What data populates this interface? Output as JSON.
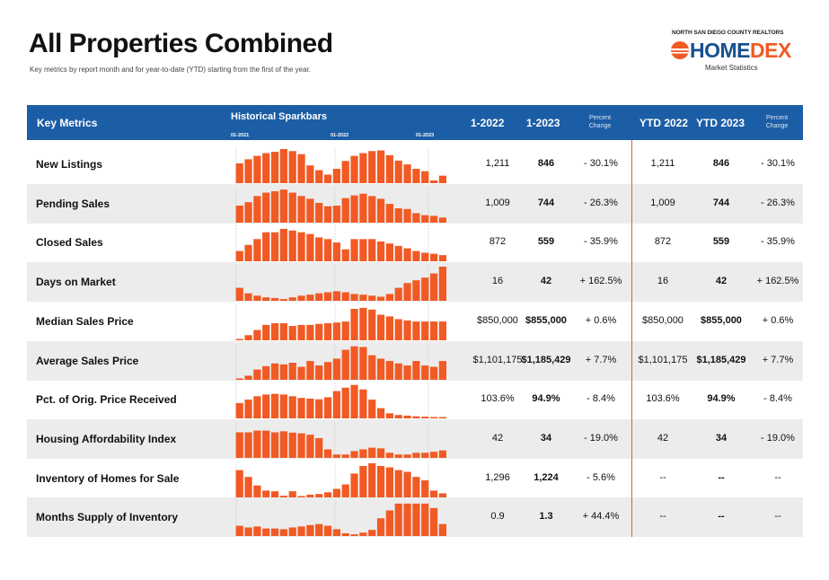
{
  "title": "All Properties Combined",
  "subtitle": "Key metrics by report month and for year-to-date (YTD) starting from the first of the year.",
  "logo": {
    "top_text": "NORTH SAN DIEGO COUNTY REALTORS",
    "brand_home": "HOME",
    "brand_dex": "DEX",
    "sub_text": "Market Statistics",
    "colors": {
      "blue": "#16508f",
      "orange": "#f15a24"
    }
  },
  "header": {
    "key_metrics": "Key Metrics",
    "sparkbars": "Historical Sparkbars",
    "tick_2021": "01-2021",
    "tick_2022": "01-2022",
    "tick_2023": "01-2023",
    "col_1_2022": "1-2022",
    "col_1_2023": "1-2023",
    "pct_1": "Percent",
    "pct_2": "Change",
    "ytd_2022": "YTD 2022",
    "ytd_2023": "YTD 2023",
    "ytd_pct_1": "Percent",
    "ytd_pct_2": "Change"
  },
  "colors": {
    "header_bg": "#1c5ea6",
    "bar": "#f15a24",
    "divider": "#e9573f",
    "row_shade": "#ececec"
  },
  "rows": [
    {
      "label": "New Listings",
      "v2022": "1,211",
      "v2023": "846",
      "pct": "- 30.1%",
      "ytd2022": "1,211",
      "ytd2023": "846",
      "ytdpct": "- 30.1%",
      "bars": [
        0.58,
        0.7,
        0.8,
        0.88,
        0.92,
        1.0,
        0.94,
        0.85,
        0.52,
        0.38,
        0.25,
        0.42,
        0.65,
        0.8,
        0.88,
        0.94,
        0.96,
        0.82,
        0.66,
        0.55,
        0.42,
        0.35,
        0.08,
        0.22
      ]
    },
    {
      "label": "Pending Sales",
      "v2022": "1,009",
      "v2023": "744",
      "pct": "- 26.3%",
      "ytd2022": "1,009",
      "ytd2023": "744",
      "ytdpct": "- 26.3%",
      "bars": [
        0.5,
        0.6,
        0.78,
        0.88,
        0.92,
        0.97,
        0.88,
        0.78,
        0.7,
        0.58,
        0.48,
        0.5,
        0.72,
        0.8,
        0.85,
        0.78,
        0.7,
        0.55,
        0.42,
        0.4,
        0.28,
        0.22,
        0.2,
        0.15
      ]
    },
    {
      "label": "Closed Sales",
      "v2022": "872",
      "v2023": "559",
      "pct": "- 35.9%",
      "ytd2022": "872",
      "ytd2023": "559",
      "ytdpct": "- 35.9%",
      "bars": [
        0.3,
        0.48,
        0.65,
        0.85,
        0.85,
        0.95,
        0.9,
        0.85,
        0.8,
        0.7,
        0.65,
        0.55,
        0.35,
        0.65,
        0.65,
        0.65,
        0.58,
        0.52,
        0.45,
        0.38,
        0.3,
        0.25,
        0.22,
        0.18
      ]
    },
    {
      "label": "Days on Market",
      "v2022": "16",
      "v2023": "42",
      "pct": "+ 162.5%",
      "ytd2022": "16",
      "ytd2023": "42",
      "ytdpct": "+ 162.5%",
      "bars": [
        0.38,
        0.22,
        0.15,
        0.1,
        0.08,
        0.05,
        0.1,
        0.15,
        0.18,
        0.22,
        0.25,
        0.28,
        0.25,
        0.2,
        0.18,
        0.15,
        0.12,
        0.2,
        0.38,
        0.52,
        0.6,
        0.68,
        0.8,
        1.0
      ]
    },
    {
      "label": "Median Sales Price",
      "v2022": "$850,000",
      "v2023": "$855,000",
      "pct": "+ 0.6%",
      "ytd2022": "$850,000",
      "ytd2023": "$855,000",
      "ytdpct": "+ 0.6%",
      "bars": [
        0.02,
        0.15,
        0.3,
        0.45,
        0.5,
        0.5,
        0.42,
        0.45,
        0.45,
        0.48,
        0.5,
        0.52,
        0.55,
        0.92,
        0.95,
        0.9,
        0.75,
        0.7,
        0.62,
        0.58,
        0.55,
        0.55,
        0.55,
        0.55
      ]
    },
    {
      "label": "Average Sales Price",
      "v2022": "$1,101,175",
      "v2023": "$1,185,429",
      "pct": "+ 7.7%",
      "ytd2022": "$1,101,175",
      "ytd2023": "$1,185,429",
      "ytdpct": "+ 7.7%",
      "bars": [
        0.02,
        0.12,
        0.3,
        0.4,
        0.48,
        0.45,
        0.5,
        0.38,
        0.55,
        0.42,
        0.52,
        0.62,
        0.88,
        0.98,
        0.96,
        0.72,
        0.62,
        0.55,
        0.48,
        0.42,
        0.55,
        0.42,
        0.38,
        0.55
      ]
    },
    {
      "label": "Pct. of Orig. Price Received",
      "v2022": "103.6%",
      "v2023": "94.9%",
      "pct": "- 8.4%",
      "ytd2022": "103.6%",
      "ytd2023": "94.9%",
      "ytdpct": "- 8.4%",
      "bars": [
        0.45,
        0.55,
        0.65,
        0.7,
        0.72,
        0.7,
        0.65,
        0.6,
        0.58,
        0.56,
        0.62,
        0.8,
        0.9,
        0.98,
        0.85,
        0.55,
        0.3,
        0.15,
        0.1,
        0.08,
        0.06,
        0.05,
        0.04,
        0.04
      ]
    },
    {
      "label": "Housing Affordability Index",
      "v2022": "42",
      "v2023": "34",
      "pct": "- 19.0%",
      "ytd2022": "42",
      "ytd2023": "34",
      "ytdpct": "- 19.0%",
      "bars": [
        0.75,
        0.75,
        0.8,
        0.8,
        0.75,
        0.78,
        0.74,
        0.72,
        0.68,
        0.58,
        0.25,
        0.1,
        0.1,
        0.2,
        0.25,
        0.3,
        0.28,
        0.15,
        0.1,
        0.1,
        0.15,
        0.15,
        0.18,
        0.22
      ]
    },
    {
      "label": "Inventory of Homes for Sale",
      "v2022": "1,296",
      "v2023": "1,224",
      "pct": "- 5.6%",
      "ytd2022": "--",
      "ytd2023": "--",
      "ytdpct": "--",
      "bars": [
        0.8,
        0.6,
        0.35,
        0.2,
        0.18,
        0.05,
        0.18,
        0.04,
        0.08,
        0.1,
        0.15,
        0.25,
        0.38,
        0.7,
        0.92,
        1.0,
        0.92,
        0.88,
        0.8,
        0.75,
        0.6,
        0.5,
        0.2,
        0.12
      ]
    },
    {
      "label": "Months Supply of Inventory",
      "v2022": "0.9",
      "v2023": "1.3",
      "pct": "+ 44.4%",
      "ytd2022": "--",
      "ytd2023": "--",
      "ytdpct": "--",
      "bars": [
        0.3,
        0.25,
        0.28,
        0.22,
        0.22,
        0.2,
        0.25,
        0.28,
        0.32,
        0.35,
        0.3,
        0.2,
        0.08,
        0.05,
        0.1,
        0.18,
        0.52,
        0.75,
        0.95,
        0.95,
        0.95,
        0.95,
        0.82,
        0.35
      ]
    }
  ]
}
